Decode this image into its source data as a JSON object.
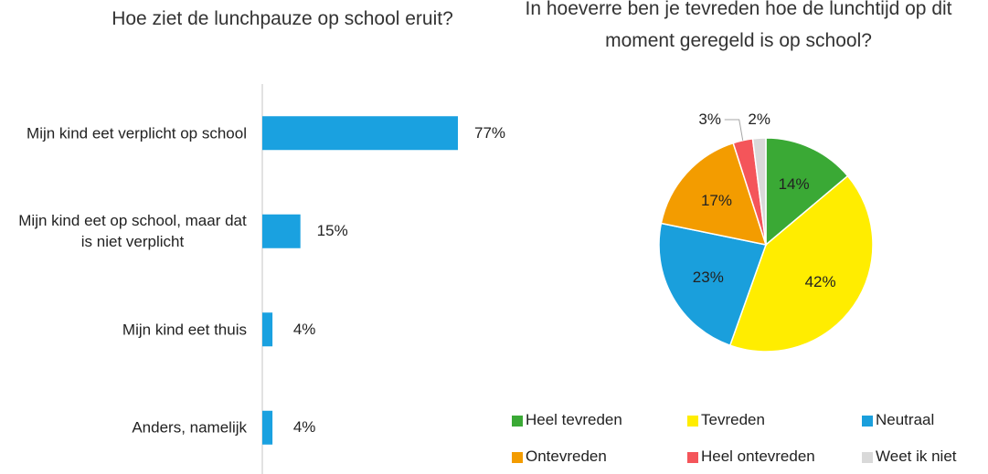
{
  "chart_data": [
    {
      "type": "bar",
      "orientation": "horizontal",
      "title": "Hoe ziet de lunchpauze op school eruit?",
      "categories": [
        "Mijn kind eet verplicht op school",
        "Mijn kind eet op school, maar dat is niet verplicht",
        "Mijn kind eet thuis",
        "Anders, namelijk"
      ],
      "values": [
        77,
        15,
        4,
        4
      ],
      "value_labels": [
        "77%",
        "15%",
        "4%",
        "4%"
      ],
      "color": "#1aa1e0"
    },
    {
      "type": "pie",
      "title": "In hoeverre ben je tevreden hoe de lunchtijd op dit moment geregeld is op school?",
      "categories": [
        "Heel tevreden",
        "Tevreden",
        "Neutraal",
        "Ontevreden",
        "Heel ontevreden",
        "Weet ik niet"
      ],
      "values": [
        14,
        42,
        23,
        17,
        3,
        2
      ],
      "value_labels": [
        "14%",
        "42%",
        "23%",
        "17%",
        "3%",
        "2%"
      ],
      "colors": [
        "#3aa935",
        "#ffed00",
        "#1a9fdc",
        "#f39c00",
        "#f4555a",
        "#d9d9d9"
      ],
      "legend": "bottom"
    }
  ]
}
